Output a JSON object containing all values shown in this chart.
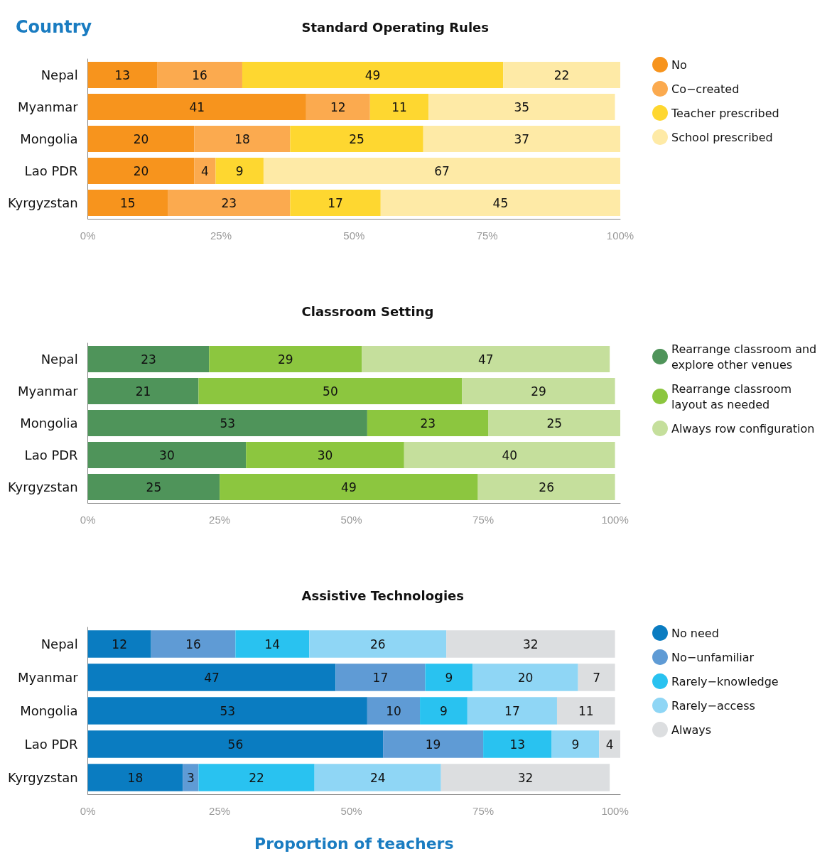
{
  "chart_data": [
    {
      "type": "bar",
      "title": "Standard Operating Rules",
      "ylabel": "Country",
      "orientation": "horizontal",
      "stacked": true,
      "data_labels": true,
      "legend": "top right",
      "grid": false,
      "categories": [
        "Nepal",
        "Myanmar",
        "Mongolia",
        "Lao PDR",
        "Kyrgyzstan"
      ],
      "xlim": [
        0,
        100
      ],
      "xticks": [
        {
          "value": 0,
          "label": "0%"
        },
        {
          "value": 25,
          "label": "25%"
        },
        {
          "value": 50,
          "label": "50%"
        },
        {
          "value": 75,
          "label": "75%"
        },
        {
          "value": 100,
          "label": "100%"
        }
      ],
      "series": [
        {
          "name": "No",
          "color": "#f7941d",
          "values": [
            13,
            41,
            20,
            20,
            15
          ]
        },
        {
          "name": "Co−created",
          "color": "#fbaa4f",
          "values": [
            16,
            12,
            18,
            4,
            23
          ]
        },
        {
          "name": "Teacher prescribed",
          "color": "#fed730",
          "values": [
            49,
            11,
            25,
            9,
            17
          ]
        },
        {
          "name": "School prescribed",
          "color": "#feeaa6",
          "values": [
            22,
            35,
            37,
            67,
            45
          ]
        }
      ]
    },
    {
      "type": "bar",
      "title": "Classroom Setting",
      "orientation": "horizontal",
      "stacked": true,
      "data_labels": true,
      "legend": "top right",
      "grid": false,
      "categories": [
        "Nepal",
        "Myanmar",
        "Mongolia",
        "Lao PDR",
        "Kyrgyzstan"
      ],
      "xlim": [
        0,
        101
      ],
      "xticks": [
        {
          "value": 0,
          "label": "0%"
        },
        {
          "value": 25,
          "label": "25%"
        },
        {
          "value": 50,
          "label": "50%"
        },
        {
          "value": 75,
          "label": "75%"
        },
        {
          "value": 100,
          "label": "100%"
        }
      ],
      "series": [
        {
          "name": "Rearrange classroom and explore other venues",
          "color": "#4f945a",
          "values": [
            23,
            21,
            53,
            30,
            25
          ]
        },
        {
          "name": "Rearrange classroom layout as needed",
          "color": "#8cc63f",
          "values": [
            29,
            50,
            23,
            30,
            49
          ]
        },
        {
          "name": "Always row configuration",
          "color": "#c5df9c",
          "values": [
            47,
            29,
            25,
            40,
            26
          ]
        }
      ]
    },
    {
      "type": "bar",
      "title": "Assistive Technologies",
      "xlabel": "Proportion of teachers",
      "orientation": "horizontal",
      "stacked": true,
      "data_labels": true,
      "legend": "top right",
      "grid": false,
      "categories": [
        "Nepal",
        "Myanmar",
        "Mongolia",
        "Lao PDR",
        "Kyrgyzstan"
      ],
      "xlim": [
        0,
        101
      ],
      "xticks": [
        {
          "value": 0,
          "label": "0%"
        },
        {
          "value": 25,
          "label": "25%"
        },
        {
          "value": 50,
          "label": "50%"
        },
        {
          "value": 75,
          "label": "75%"
        },
        {
          "value": 100,
          "label": "100%"
        }
      ],
      "series": [
        {
          "name": "No need",
          "color": "#0a7cc1",
          "values": [
            12,
            47,
            53,
            56,
            18
          ]
        },
        {
          "name": "No−unfamiliar",
          "color": "#5f9bd5",
          "values": [
            16,
            17,
            10,
            19,
            3
          ]
        },
        {
          "name": "Rarely−knowledge",
          "color": "#29c2f0",
          "values": [
            14,
            9,
            9,
            13,
            22
          ]
        },
        {
          "name": "Rarely−access",
          "color": "#8fd6f5",
          "values": [
            26,
            20,
            17,
            9,
            24
          ]
        },
        {
          "name": "Always",
          "color": "#dcdee0",
          "values": [
            32,
            7,
            11,
            4,
            32
          ]
        }
      ]
    }
  ]
}
